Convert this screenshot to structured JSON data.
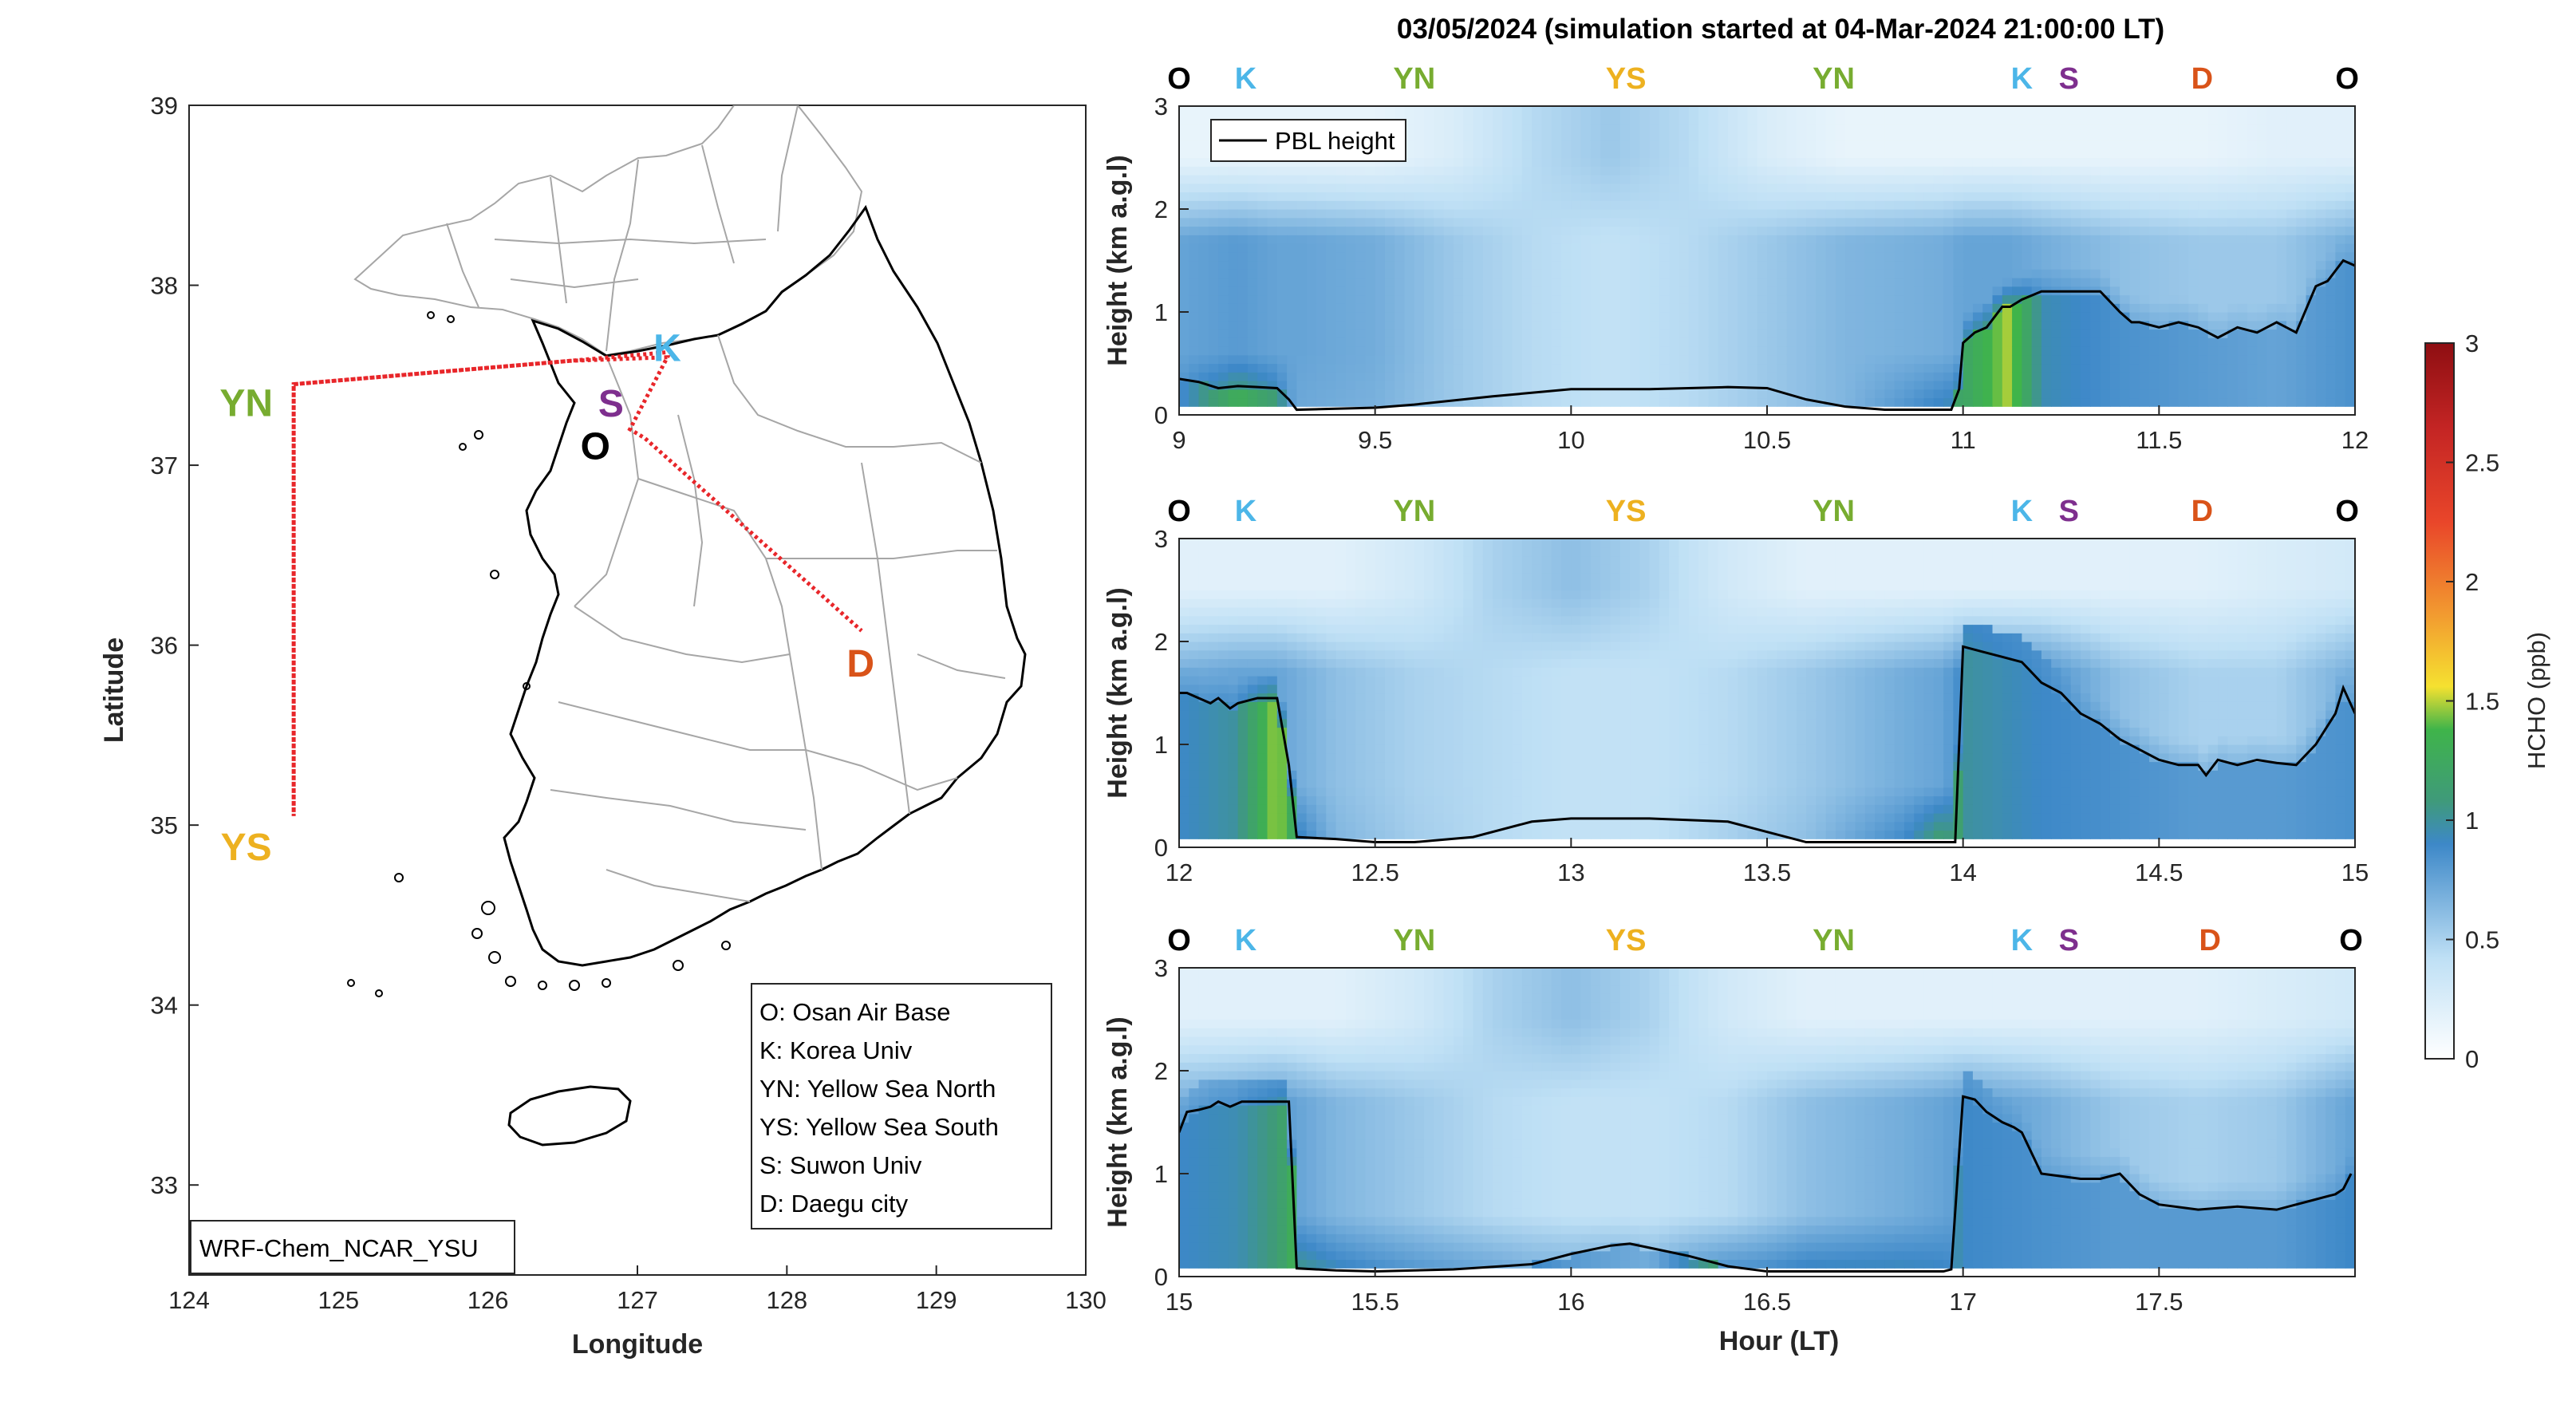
{
  "figure_title": "03/05/2024 (simulation started at 04-Mar-2024 21:00:00 LT)",
  "colors": {
    "O": "#000000",
    "K": "#4cb6e8",
    "YN": "#77ac30",
    "YS": "#edb120",
    "S": "#7e2f8e",
    "D": "#d95319",
    "track": "#e8262a",
    "pbl": "#000000"
  },
  "map": {
    "xlabel": "Longitude",
    "ylabel": "Latitude",
    "xlim": [
      124,
      130
    ],
    "ylim": [
      32.5,
      39
    ],
    "xticks": [
      "124",
      "125",
      "126",
      "127",
      "128",
      "129",
      "130"
    ],
    "yticks": [
      "33",
      "34",
      "35",
      "36",
      "37",
      "38",
      "39"
    ],
    "model_label": "WRF-Chem_NCAR_YSU",
    "site_labels": {
      "K": "K",
      "S": "S",
      "O": "O",
      "D": "D",
      "YN": "YN",
      "YS": "YS"
    },
    "sites": {
      "O": [
        126.9,
        37.1
      ],
      "K": [
        127.2,
        37.58
      ],
      "S": [
        126.93,
        37.27
      ],
      "D": [
        128.6,
        35.87
      ],
      "YN_label": [
        124.5,
        37.45
      ],
      "YS_label": [
        124.5,
        35.05
      ]
    },
    "flight_track": [
      [
        127.23,
        37.63
      ],
      [
        126.55,
        37.58
      ],
      [
        124.7,
        37.45
      ],
      [
        124.7,
        35.05
      ],
      [
        124.7,
        37.45
      ],
      [
        126.55,
        37.58
      ],
      [
        127.2,
        37.6
      ],
      [
        126.95,
        37.2
      ],
      [
        127.05,
        37.15
      ],
      [
        128.5,
        36.08
      ]
    ],
    "legend": [
      "O: Osan Air Base",
      "K: Korea Univ",
      "YN: Yellow Sea North",
      "YS: Yellow Sea South",
      "S: Suwon Univ",
      "D: Daegu city"
    ]
  },
  "chart_data": {
    "type": "heatmap",
    "title": "03/05/2024 (simulation started at 04-Mar-2024 21:00:00 LT)",
    "xlabel": "Hour (LT)",
    "ylabel": "Height (km a.g.l)",
    "colorbar_label": "HCHO (ppb)",
    "clim": [
      0,
      3
    ],
    "colorbar_ticks": [
      "0",
      "0.5",
      "1",
      "1.5",
      "2",
      "2.5",
      "3"
    ],
    "legend": [
      "PBL height"
    ],
    "legend_position": "top-left of first panel",
    "panels": [
      {
        "xlim": [
          9,
          12
        ],
        "ylim": [
          0,
          3
        ],
        "xticks": [
          "9",
          "9.5",
          "10",
          "10.5",
          "11",
          "11.5",
          "12"
        ],
        "yticks": [
          "0",
          "1",
          "2",
          "3"
        ],
        "top_markers": [
          {
            "label": "O",
            "x": 9.0
          },
          {
            "label": "K",
            "x": 9.17
          },
          {
            "label": "YN",
            "x": 9.6
          },
          {
            "label": "YS",
            "x": 10.14
          },
          {
            "label": "YN",
            "x": 10.67
          },
          {
            "label": "K",
            "x": 11.15
          },
          {
            "label": "S",
            "x": 11.27
          },
          {
            "label": "D",
            "x": 11.61
          },
          {
            "label": "O",
            "x": 11.98
          }
        ],
        "pbl_height": {
          "x": [
            9.0,
            9.05,
            9.1,
            9.15,
            9.2,
            9.25,
            9.28,
            9.3,
            9.5,
            9.6,
            9.8,
            10.0,
            10.2,
            10.4,
            10.5,
            10.6,
            10.7,
            10.8,
            10.97,
            10.99,
            11.0,
            11.03,
            11.06,
            11.08,
            11.1,
            11.12,
            11.15,
            11.2,
            11.25,
            11.3,
            11.35,
            11.4,
            11.43,
            11.45,
            11.5,
            11.55,
            11.6,
            11.65,
            11.7,
            11.75,
            11.8,
            11.85,
            11.9,
            11.93,
            11.95,
            11.97,
            12.0
          ],
          "y": [
            0.35,
            0.32,
            0.26,
            0.28,
            0.27,
            0.26,
            0.15,
            0.05,
            0.07,
            0.1,
            0.18,
            0.25,
            0.25,
            0.27,
            0.26,
            0.15,
            0.08,
            0.05,
            0.05,
            0.25,
            0.7,
            0.8,
            0.85,
            0.95,
            1.05,
            1.05,
            1.12,
            1.2,
            1.2,
            1.2,
            1.2,
            1.0,
            0.9,
            0.9,
            0.85,
            0.9,
            0.85,
            0.75,
            0.85,
            0.8,
            0.9,
            0.8,
            1.25,
            1.3,
            1.4,
            1.5,
            1.45
          ]
        },
        "hcho_ppb": {
          "x": [
            9.0,
            9.15,
            9.25,
            9.3,
            9.5,
            9.7,
            9.9,
            10.1,
            10.3,
            10.5,
            10.7,
            10.95,
            11.0,
            11.12,
            11.2,
            11.4,
            11.6,
            11.8,
            12.0
          ],
          "boundary_layer": [
            0.85,
            1.3,
            1.1,
            0.7,
            0.65,
            0.55,
            0.45,
            0.4,
            0.45,
            0.55,
            0.65,
            1.2,
            1.2,
            1.5,
            0.95,
            0.85,
            0.8,
            0.75,
            0.85
          ],
          "mid_layer": [
            0.75,
            0.8,
            0.75,
            0.75,
            0.7,
            0.55,
            0.45,
            0.4,
            0.45,
            0.55,
            0.65,
            0.7,
            0.75,
            0.75,
            0.7,
            0.6,
            0.55,
            0.55,
            0.7
          ],
          "aloft": [
            0.15,
            0.15,
            0.15,
            0.15,
            0.15,
            0.25,
            0.45,
            0.55,
            0.45,
            0.25,
            0.15,
            0.15,
            0.15,
            0.15,
            0.15,
            0.15,
            0.15,
            0.2,
            0.2
          ]
        }
      },
      {
        "xlim": [
          12,
          15
        ],
        "ylim": [
          0,
          3
        ],
        "xticks": [
          "12",
          "12.5",
          "13",
          "13.5",
          "14",
          "14.5",
          "15"
        ],
        "yticks": [
          "0",
          "1",
          "2",
          "3"
        ],
        "top_markers": [
          {
            "label": "O",
            "x": 12.0
          },
          {
            "label": "K",
            "x": 12.17
          },
          {
            "label": "YN",
            "x": 12.6
          },
          {
            "label": "YS",
            "x": 13.14
          },
          {
            "label": "YN",
            "x": 13.67
          },
          {
            "label": "K",
            "x": 14.15
          },
          {
            "label": "S",
            "x": 14.27
          },
          {
            "label": "D",
            "x": 14.61
          },
          {
            "label": "O",
            "x": 14.98
          }
        ],
        "pbl_height": {
          "x": [
            12.0,
            12.02,
            12.05,
            12.08,
            12.1,
            12.13,
            12.15,
            12.2,
            12.25,
            12.28,
            12.3,
            12.4,
            12.5,
            12.6,
            12.75,
            12.9,
            13.0,
            13.2,
            13.4,
            13.5,
            13.6,
            13.8,
            13.98,
            14.0,
            14.05,
            14.1,
            14.15,
            14.2,
            14.25,
            14.3,
            14.35,
            14.4,
            14.45,
            14.5,
            14.55,
            14.6,
            14.62,
            14.65,
            14.7,
            14.75,
            14.8,
            14.85,
            14.9,
            14.95,
            14.97,
            15.0
          ],
          "y": [
            1.5,
            1.5,
            1.45,
            1.4,
            1.45,
            1.35,
            1.4,
            1.45,
            1.45,
            0.8,
            0.1,
            0.08,
            0.05,
            0.05,
            0.1,
            0.25,
            0.28,
            0.28,
            0.25,
            0.15,
            0.05,
            0.05,
            0.05,
            1.95,
            1.9,
            1.85,
            1.8,
            1.6,
            1.5,
            1.3,
            1.2,
            1.05,
            0.95,
            0.85,
            0.8,
            0.8,
            0.7,
            0.85,
            0.8,
            0.85,
            0.82,
            0.8,
            1.0,
            1.3,
            1.55,
            1.3
          ]
        },
        "hcho_ppb": {
          "x": [
            12.0,
            12.15,
            12.25,
            12.3,
            12.4,
            12.6,
            12.8,
            13.0,
            13.2,
            13.4,
            13.6,
            13.85,
            13.95,
            14.0,
            14.2,
            14.4,
            14.6,
            14.8,
            15.0
          ],
          "boundary_layer": [
            0.9,
            1.0,
            1.5,
            1.2,
            0.7,
            0.55,
            0.45,
            0.4,
            0.4,
            0.5,
            0.65,
            1.1,
            1.6,
            1.0,
            0.9,
            0.85,
            0.8,
            0.8,
            0.85
          ],
          "mid_layer": [
            0.7,
            0.75,
            0.75,
            0.7,
            0.6,
            0.5,
            0.45,
            0.4,
            0.4,
            0.45,
            0.55,
            0.7,
            0.75,
            0.9,
            0.85,
            0.6,
            0.5,
            0.5,
            0.7
          ],
          "aloft": [
            0.2,
            0.2,
            0.2,
            0.2,
            0.2,
            0.3,
            0.5,
            0.6,
            0.5,
            0.3,
            0.2,
            0.2,
            0.2,
            0.2,
            0.2,
            0.2,
            0.2,
            0.25,
            0.3
          ]
        }
      },
      {
        "xlim": [
          15,
          18
        ],
        "ylim": [
          0,
          3
        ],
        "xticks": [
          "15",
          "15.5",
          "16",
          "16.5",
          "17",
          "17.5"
        ],
        "yticks": [
          "0",
          "1",
          "2",
          "3"
        ],
        "top_markers": [
          {
            "label": "O",
            "x": 15.0
          },
          {
            "label": "K",
            "x": 15.17
          },
          {
            "label": "YN",
            "x": 15.6
          },
          {
            "label": "YS",
            "x": 16.14
          },
          {
            "label": "YN",
            "x": 16.67
          },
          {
            "label": "K",
            "x": 17.15
          },
          {
            "label": "S",
            "x": 17.27
          },
          {
            "label": "D",
            "x": 17.63
          },
          {
            "label": "O",
            "x": 17.99
          }
        ],
        "pbl_height": {
          "x": [
            15.0,
            15.02,
            15.05,
            15.08,
            15.1,
            15.13,
            15.16,
            15.2,
            15.25,
            15.28,
            15.3,
            15.4,
            15.5,
            15.7,
            15.9,
            16.0,
            16.1,
            16.15,
            16.2,
            16.3,
            16.4,
            16.5,
            16.6,
            16.8,
            16.95,
            16.97,
            17.0,
            17.03,
            17.06,
            17.1,
            17.13,
            17.15,
            17.2,
            17.3,
            17.35,
            17.4,
            17.45,
            17.5,
            17.6,
            17.7,
            17.8,
            17.9,
            17.95,
            17.97,
            17.99
          ],
          "y": [
            1.4,
            1.6,
            1.62,
            1.65,
            1.7,
            1.65,
            1.7,
            1.7,
            1.7,
            1.7,
            0.08,
            0.06,
            0.05,
            0.07,
            0.12,
            0.22,
            0.3,
            0.32,
            0.28,
            0.2,
            0.1,
            0.05,
            0.05,
            0.05,
            0.05,
            0.07,
            1.75,
            1.72,
            1.6,
            1.5,
            1.45,
            1.4,
            1.0,
            0.95,
            0.95,
            1.0,
            0.8,
            0.7,
            0.65,
            0.68,
            0.65,
            0.75,
            0.8,
            0.85,
            1.0
          ]
        },
        "hcho_ppb": {
          "x": [
            15.0,
            15.15,
            15.25,
            15.3,
            15.4,
            15.6,
            15.8,
            16.0,
            16.2,
            16.4,
            16.6,
            16.85,
            16.95,
            17.0,
            17.2,
            17.4,
            17.6,
            17.8,
            17.99
          ],
          "boundary_layer": [
            0.9,
            0.95,
            1.1,
            1.35,
            1.25,
            1.1,
            1.0,
            0.8,
            0.7,
            1.2,
            1.3,
            1.2,
            1.1,
            0.9,
            0.85,
            0.8,
            0.8,
            0.8,
            0.9
          ],
          "mid_layer": [
            0.7,
            0.75,
            0.8,
            0.75,
            0.65,
            0.55,
            0.45,
            0.4,
            0.4,
            0.45,
            0.6,
            0.7,
            0.75,
            0.8,
            0.7,
            0.55,
            0.5,
            0.55,
            0.75
          ],
          "aloft": [
            0.2,
            0.2,
            0.2,
            0.2,
            0.2,
            0.3,
            0.5,
            0.6,
            0.5,
            0.3,
            0.2,
            0.2,
            0.2,
            0.2,
            0.2,
            0.2,
            0.2,
            0.25,
            0.3
          ]
        }
      }
    ]
  }
}
